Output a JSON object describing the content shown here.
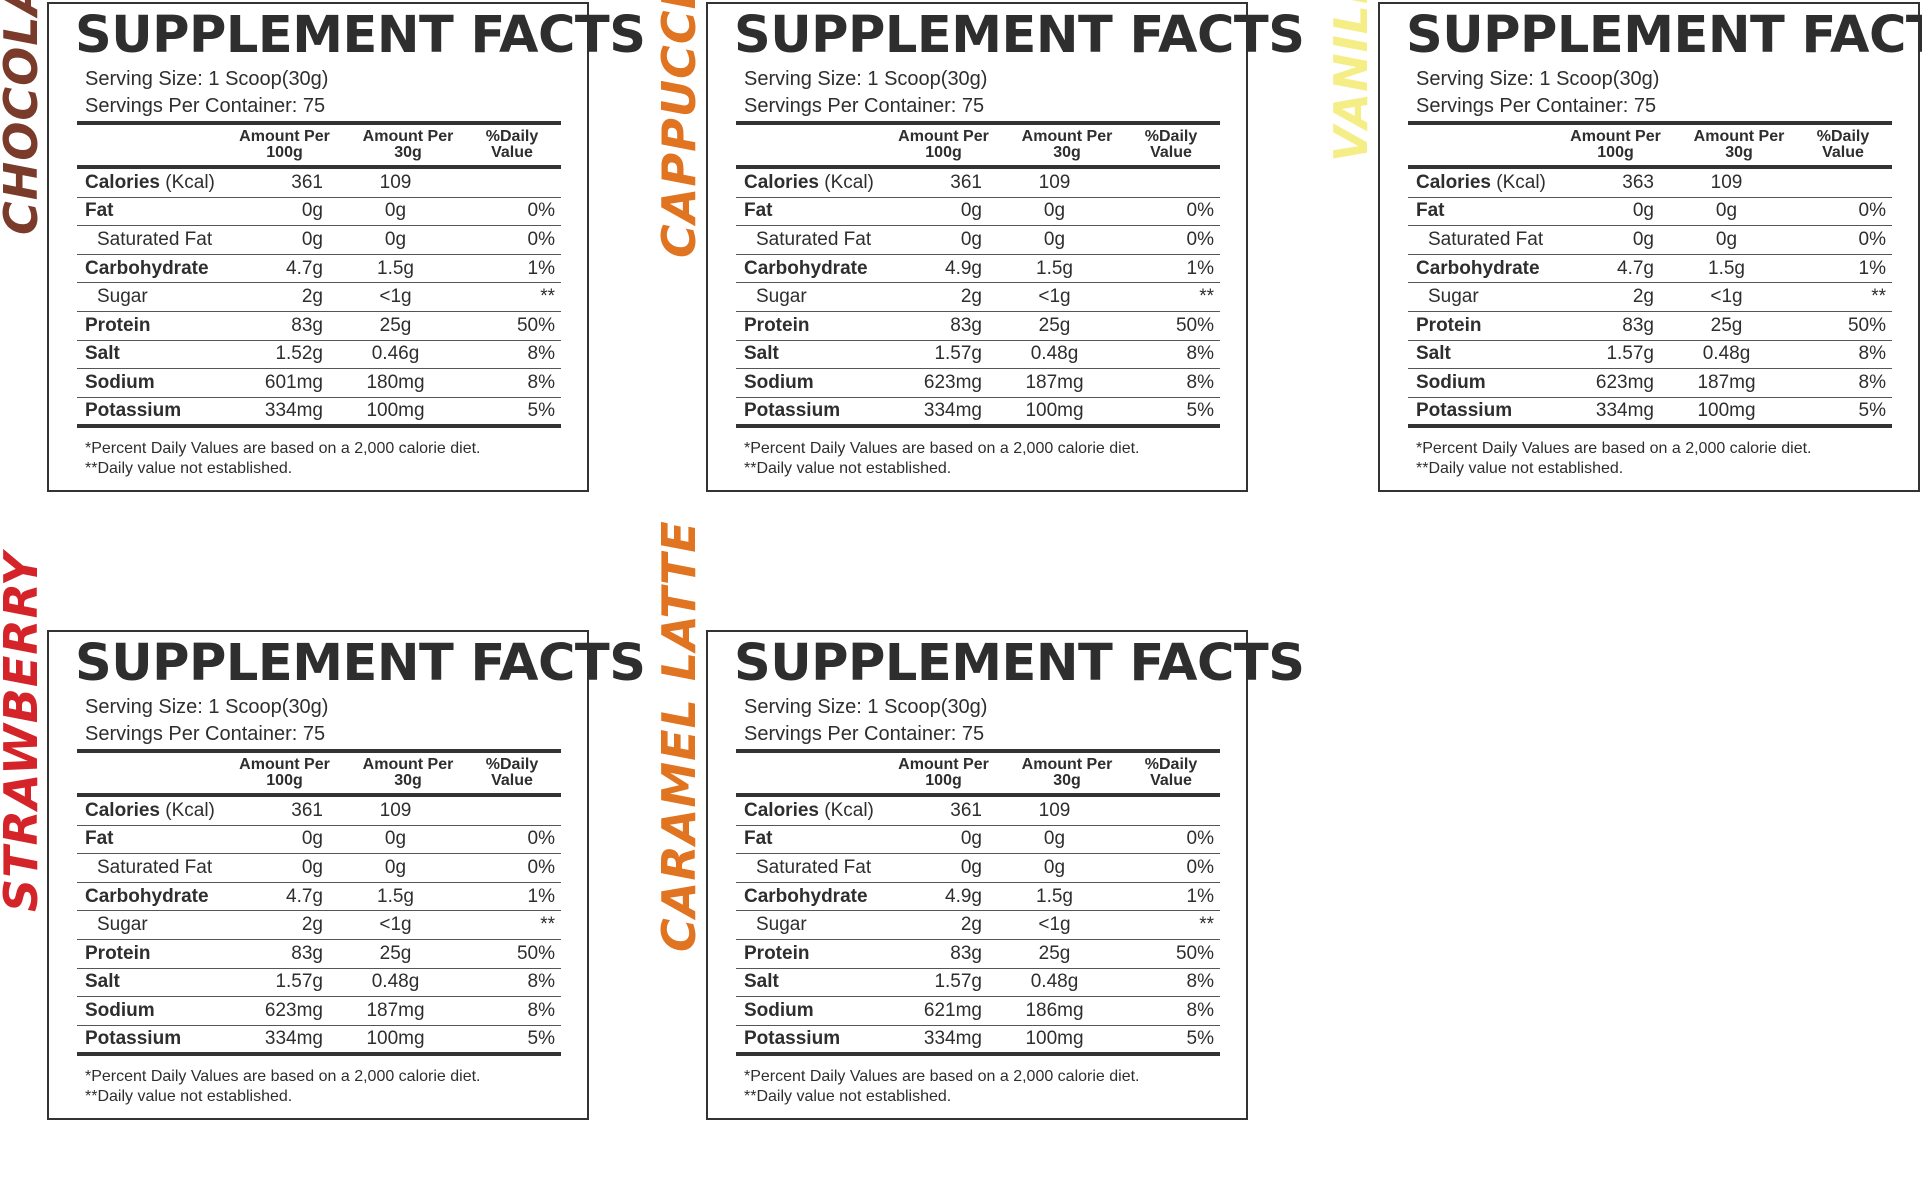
{
  "header": {
    "title": "SUPPLEMENT FACTS",
    "serving_size": "Serving Size: 1 Scoop(30g)",
    "servings_per_container": "Servings Per Container: 75",
    "col_per100": "Amount Per\n100g",
    "col_per30": "Amount Per\n30g",
    "col_dv": "%Daily\nValue",
    "note1": "*Percent Daily Values are based on a 2,000 calorie diet.",
    "note2": "**Daily value not established."
  },
  "row_labels": {
    "calories": "Calories",
    "calories_unit": " (Kcal)",
    "fat": "Fat",
    "saturated_fat": "Saturated Fat",
    "carbohydrate": "Carbohydrate",
    "sugar": "Sugar",
    "protein": "Protein",
    "salt": "Salt",
    "sodium": "Sodium",
    "potassium": "Potassium"
  },
  "colors": {
    "chocolate": "#7a3b2a",
    "cappuccino": "#e07420",
    "vanilla": "#f5ee86",
    "strawberry": "#d4242a",
    "caramel_latte": "#e07420"
  },
  "panels": [
    {
      "flavor": "CHOCOLATE",
      "calories": [
        "361",
        "109",
        ""
      ],
      "fat": [
        "0g",
        "0g",
        "0%"
      ],
      "saturated_fat": [
        "0g",
        "0g",
        "0%"
      ],
      "carbohydrate": [
        "4.7g",
        "1.5g",
        "1%"
      ],
      "sugar": [
        "2g",
        "<1g",
        "**"
      ],
      "protein": [
        "83g",
        "25g",
        "50%"
      ],
      "salt": [
        "1.52g",
        "0.46g",
        "8%"
      ],
      "sodium": [
        "601mg",
        "180mg",
        "8%"
      ],
      "potassium": [
        "334mg",
        "100mg",
        "5%"
      ]
    },
    {
      "flavor": "CAPPUCCINO",
      "calories": [
        "361",
        "109",
        ""
      ],
      "fat": [
        "0g",
        "0g",
        "0%"
      ],
      "saturated_fat": [
        "0g",
        "0g",
        "0%"
      ],
      "carbohydrate": [
        "4.9g",
        "1.5g",
        "1%"
      ],
      "sugar": [
        "2g",
        "<1g",
        "**"
      ],
      "protein": [
        "83g",
        "25g",
        "50%"
      ],
      "salt": [
        "1.57g",
        "0.48g",
        "8%"
      ],
      "sodium": [
        "623mg",
        "187mg",
        "8%"
      ],
      "potassium": [
        "334mg",
        "100mg",
        "5%"
      ]
    },
    {
      "flavor": "VANILLA",
      "calories": [
        "363",
        "109",
        ""
      ],
      "fat": [
        "0g",
        "0g",
        "0%"
      ],
      "saturated_fat": [
        "0g",
        "0g",
        "0%"
      ],
      "carbohydrate": [
        "4.7g",
        "1.5g",
        "1%"
      ],
      "sugar": [
        "2g",
        "<1g",
        "**"
      ],
      "protein": [
        "83g",
        "25g",
        "50%"
      ],
      "salt": [
        "1.57g",
        "0.48g",
        "8%"
      ],
      "sodium": [
        "623mg",
        "187mg",
        "8%"
      ],
      "potassium": [
        "334mg",
        "100mg",
        "5%"
      ]
    },
    {
      "flavor": "STRAWBERRY",
      "calories": [
        "361",
        "109",
        ""
      ],
      "fat": [
        "0g",
        "0g",
        "0%"
      ],
      "saturated_fat": [
        "0g",
        "0g",
        "0%"
      ],
      "carbohydrate": [
        "4.7g",
        "1.5g",
        "1%"
      ],
      "sugar": [
        "2g",
        "<1g",
        "**"
      ],
      "protein": [
        "83g",
        "25g",
        "50%"
      ],
      "salt": [
        "1.57g",
        "0.48g",
        "8%"
      ],
      "sodium": [
        "623mg",
        "187mg",
        "8%"
      ],
      "potassium": [
        "334mg",
        "100mg",
        "5%"
      ]
    },
    {
      "flavor": "CARAMEL LATTE",
      "calories": [
        "361",
        "109",
        ""
      ],
      "fat": [
        "0g",
        "0g",
        "0%"
      ],
      "saturated_fat": [
        "0g",
        "0g",
        "0%"
      ],
      "carbohydrate": [
        "4.9g",
        "1.5g",
        "1%"
      ],
      "sugar": [
        "2g",
        "<1g",
        "**"
      ],
      "protein": [
        "83g",
        "25g",
        "50%"
      ],
      "salt": [
        "1.57g",
        "0.48g",
        "8%"
      ],
      "sodium": [
        "621mg",
        "186mg",
        "8%"
      ],
      "potassium": [
        "334mg",
        "100mg",
        "5%"
      ]
    }
  ]
}
